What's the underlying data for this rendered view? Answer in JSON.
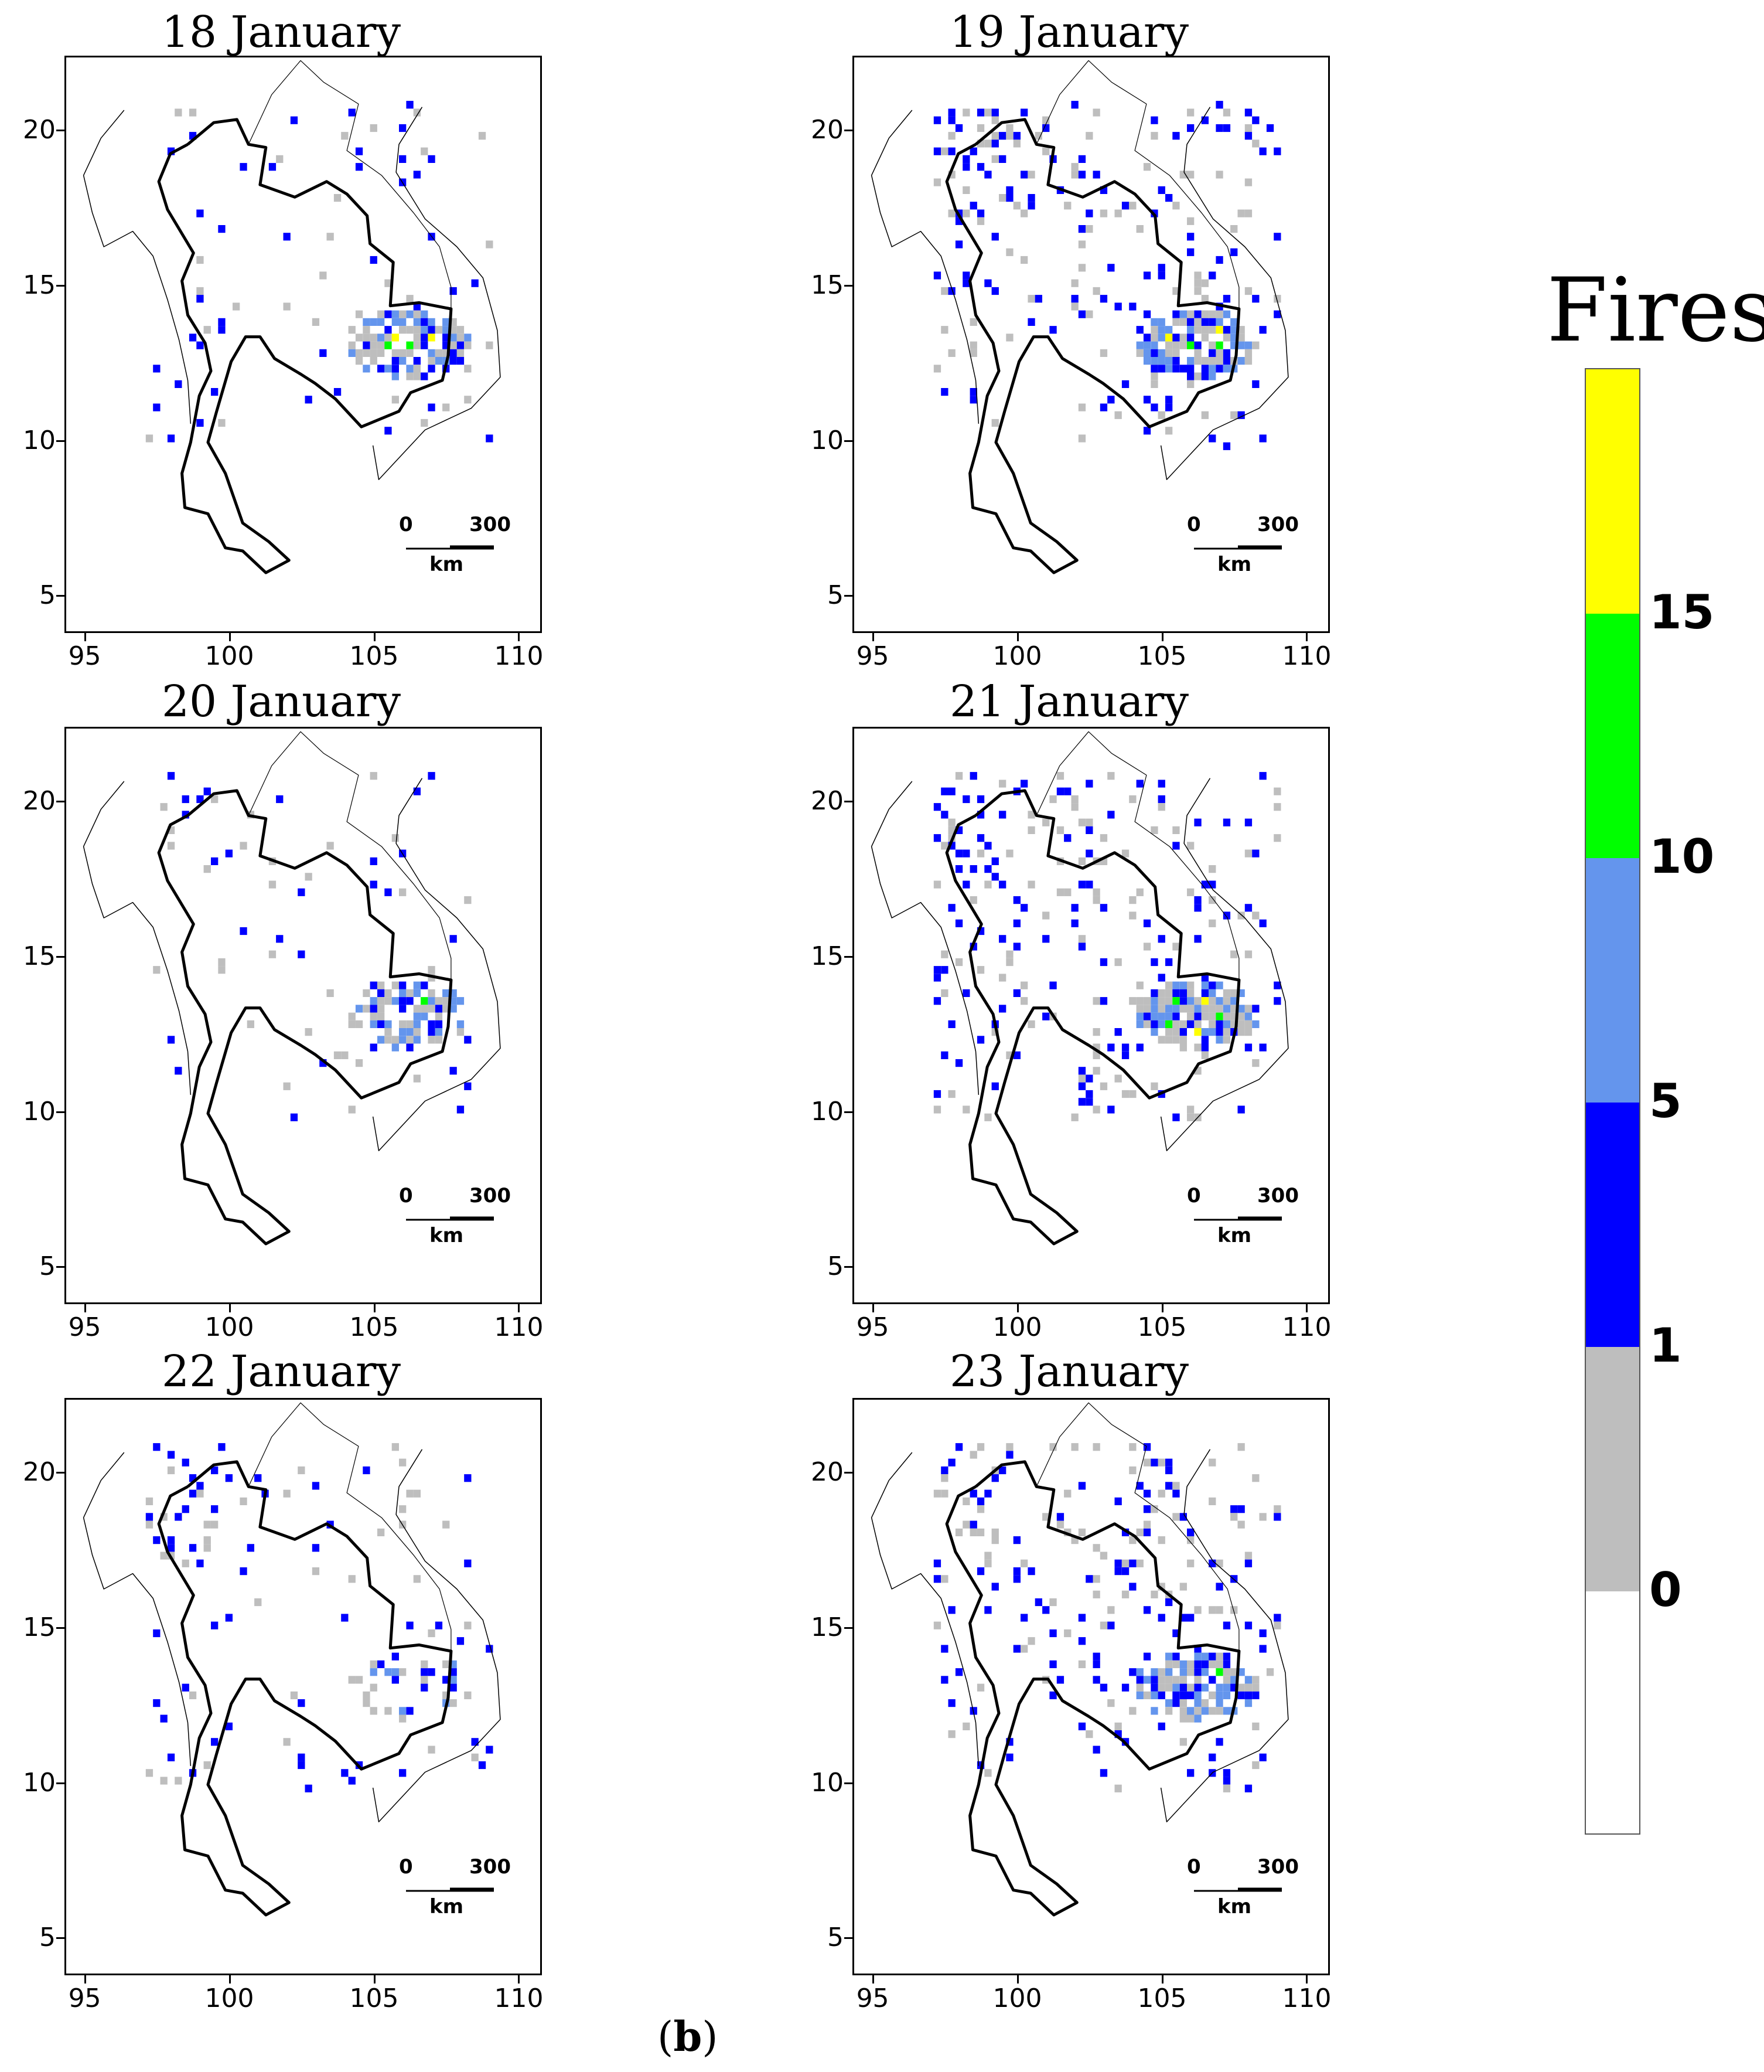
{
  "panels": [
    {
      "title": "18 January"
    },
    {
      "title": "19 January"
    },
    {
      "title": "20 January"
    },
    {
      "title": "21 January"
    },
    {
      "title": "22 January"
    },
    {
      "title": "23 January"
    }
  ],
  "axes": {
    "x_ticks": [
      "95",
      "100",
      "105",
      "110"
    ],
    "y_ticks": [
      "20",
      "15",
      "10",
      "5"
    ]
  },
  "scale_bar": {
    "start": "0",
    "end": "300",
    "unit": "km"
  },
  "legend": {
    "title": "Fires",
    "ticks": [
      "15",
      "10",
      "5",
      "1",
      "0"
    ],
    "bins": [
      {
        "range": "0",
        "color": "#ffffff"
      },
      {
        "range": "0-1",
        "color": "#bebebe"
      },
      {
        "range": "1-5",
        "color": "#0000ff"
      },
      {
        "range": "5-10",
        "color": "#6495ed"
      },
      {
        "range": "10-15",
        "color": "#00ff00"
      },
      {
        "range": ">15",
        "color": "#ffff00"
      }
    ]
  },
  "caption": {
    "open": "(",
    "letter": "b",
    "close": ")"
  }
}
